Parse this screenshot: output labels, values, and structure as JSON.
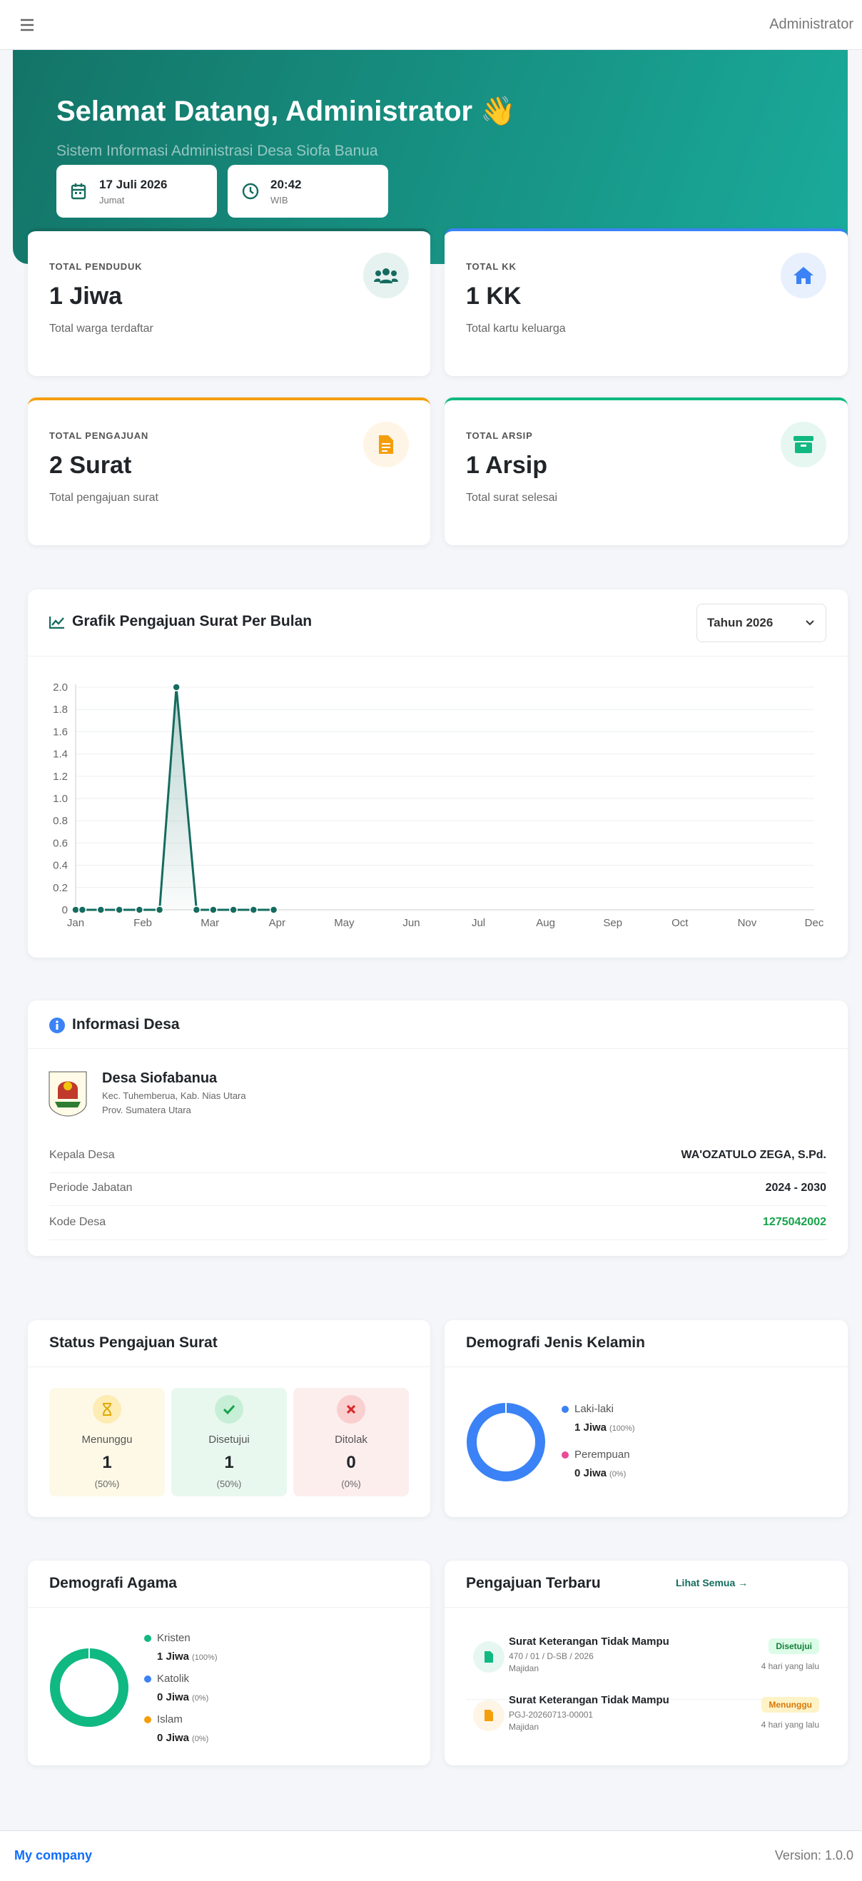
{
  "navbar": {
    "user": "Administrator"
  },
  "hero": {
    "title": "Selamat Datang, Administrator 👋",
    "subtitle": "Sistem Informasi Administrasi Desa Siofa Banua",
    "date": "17 Juli 2026",
    "day": "Jumat",
    "time": "20:42",
    "zone": "WIB"
  },
  "stats": [
    {
      "label": "TOTAL PENDUDUK",
      "value": "1 Jiwa",
      "note": "Total warga terdaftar"
    },
    {
      "label": "TOTAL KK",
      "value": "1 KK",
      "note": "Total kartu keluarga"
    },
    {
      "label": "TOTAL PENGAJUAN",
      "value": "2 Surat",
      "note": "Total pengajuan surat"
    },
    {
      "label": "TOTAL ARSIP",
      "value": "1 Arsip",
      "note": "Total surat selesai"
    }
  ],
  "chart_data": {
    "type": "line",
    "title": "Grafik Pengajuan Surat Per Bulan",
    "filter": "Tahun 2026",
    "x": [
      0,
      0.1,
      0.375,
      0.65,
      0.95,
      1.25,
      1.5,
      1.8,
      2.05,
      2.35,
      2.65,
      2.95
    ],
    "values": [
      0,
      0,
      0,
      0,
      0,
      0,
      2,
      0,
      0,
      0,
      0,
      0
    ],
    "color": "#146c5f",
    "xlim": [
      0,
      11
    ],
    "xticks": [
      {
        "value": 0,
        "label": "Jan"
      },
      {
        "value": 1,
        "label": "Feb"
      },
      {
        "value": 2,
        "label": "Mar"
      },
      {
        "value": 3,
        "label": "Apr"
      },
      {
        "value": 4,
        "label": "May"
      },
      {
        "value": 5,
        "label": "Jun"
      },
      {
        "value": 6,
        "label": "Jul"
      },
      {
        "value": 7,
        "label": "Aug"
      },
      {
        "value": 8,
        "label": "Sep"
      },
      {
        "value": 9,
        "label": "Oct"
      },
      {
        "value": 10,
        "label": "Nov"
      },
      {
        "value": 11,
        "label": "Dec"
      }
    ],
    "ylim": [
      0,
      2
    ],
    "yticks": [
      0,
      0.2,
      0.4,
      0.6,
      0.8,
      {
        "value": 1,
        "label": "1.0"
      },
      1.2,
      1.4,
      1.6,
      1.8,
      {
        "value": 2,
        "label": "2.0"
      }
    ],
    "grid": true
  },
  "info": {
    "title": "Informasi Desa",
    "name": "Desa Siofabanua",
    "address1": "Kec. Tuhemberua, Kab. Nias Utara",
    "address2": "Prov. Sumatera Utara",
    "rows": [
      [
        "Kepala Desa",
        "WA'OZATULO ZEGA, S.Pd."
      ],
      [
        "Periode Jabatan",
        "2024 - 2030"
      ],
      [
        "Kode Desa",
        "1275042002"
      ]
    ]
  },
  "status": {
    "title": "Status Pengajuan Surat",
    "items": [
      {
        "label": "Menunggu",
        "count": 1,
        "pct": "(50%)"
      },
      {
        "label": "Disetujui",
        "count": 1,
        "pct": "(50%)"
      },
      {
        "label": "Ditolak",
        "count": 0,
        "pct": "(0%)"
      }
    ]
  },
  "gender": {
    "title": "Demografi Jenis Kelamin",
    "items": [
      {
        "label": "Laki-laki",
        "value": "1 Jiwa",
        "pct": "(100%)"
      },
      {
        "label": "Perempuan",
        "value": "0 Jiwa",
        "pct": "(0%)"
      }
    ]
  },
  "religion": {
    "title": "Demografi Agama",
    "items": [
      {
        "label": "Kristen",
        "value": "1 Jiwa",
        "pct": "(100%)"
      },
      {
        "label": "Katolik",
        "value": "0 Jiwa",
        "pct": "(0%)"
      },
      {
        "label": "Islam",
        "value": "0 Jiwa",
        "pct": "(0%)"
      }
    ]
  },
  "recent": {
    "title": "Pengajuan Terbaru",
    "link": "Lihat Semua →",
    "items": [
      {
        "title": "Surat Keterangan Tidak Mampu",
        "number": "470 / 01 / D-SB / 2026",
        "name": "Majidan",
        "status": "Disetujui",
        "time": "4 hari yang lalu"
      },
      {
        "title": "Surat Keterangan Tidak Mampu",
        "number": "PGJ-20260713-00001",
        "name": "Majidan",
        "status": "Menunggu",
        "time": "4 hari yang lalu"
      }
    ]
  },
  "footer": {
    "company": "My company",
    "version": "Version: 1.0.0"
  }
}
